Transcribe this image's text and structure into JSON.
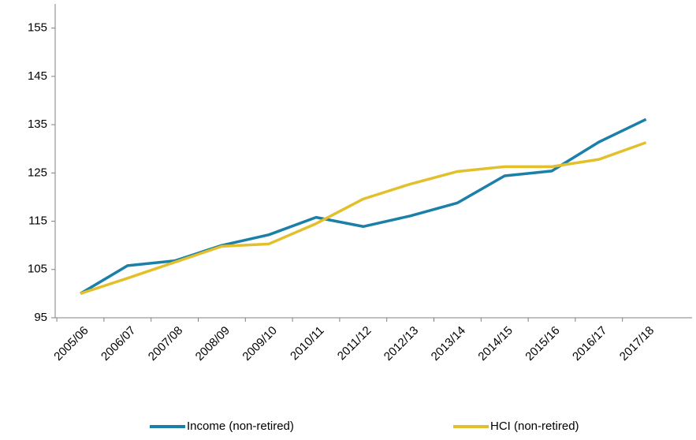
{
  "chart_data": {
    "type": "line",
    "categories": [
      "2005/06",
      "2006/07",
      "2007/08",
      "2008/09",
      "2009/10",
      "2010/11",
      "2011/12",
      "2012/13",
      "2013/14",
      "2014/15",
      "2015/16",
      "2016/17",
      "2017/18"
    ],
    "series": [
      {
        "name": "Income (non-retired)",
        "color": "#1b7fa8",
        "values": [
          100,
          105.8,
          106.8,
          110,
          112.2,
          115.8,
          113.9,
          116.1,
          118.8,
          124.4,
          125.4,
          131.4,
          136.1
        ]
      },
      {
        "name": "HCI (non-retired)",
        "color": "#e3c02b",
        "values": [
          100,
          103.2,
          106.5,
          109.8,
          110.3,
          114.5,
          119.6,
          122.7,
          125.3,
          126.3,
          126.3,
          127.8,
          131.3
        ]
      }
    ],
    "ylim": [
      95,
      160
    ],
    "yticks": [
      95,
      105,
      115,
      125,
      135,
      145,
      155
    ],
    "legend": "bottom"
  }
}
